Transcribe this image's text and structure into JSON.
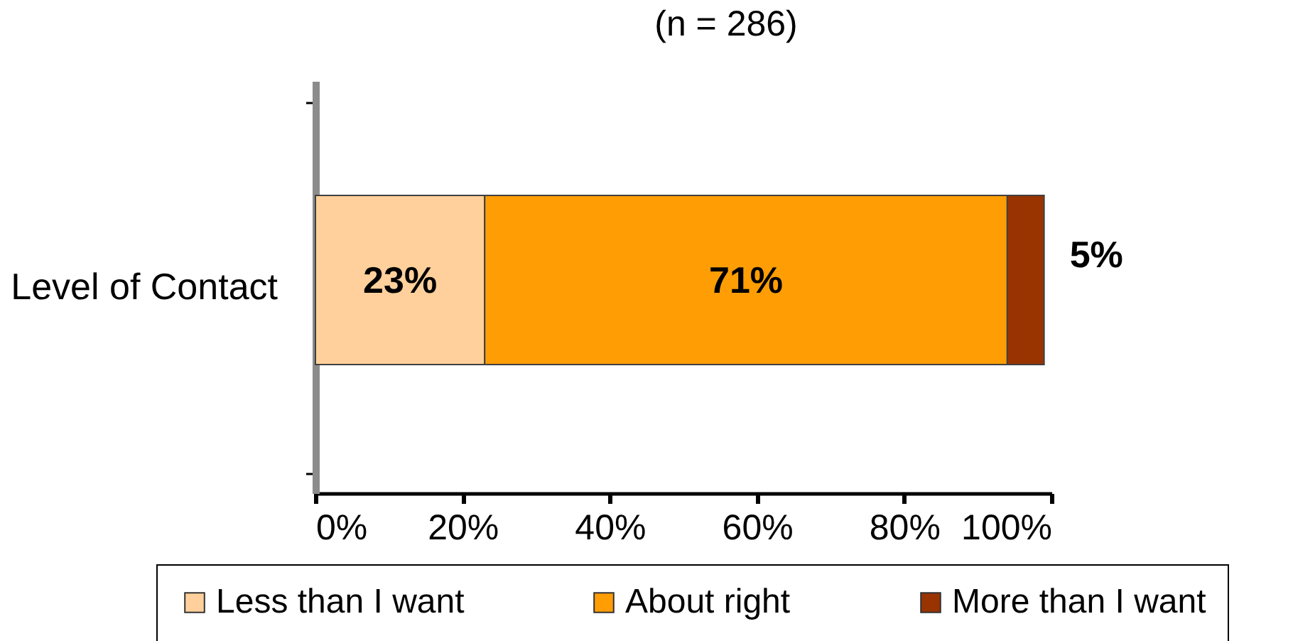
{
  "chart_data": {
    "type": "bar",
    "orientation": "horizontal",
    "stacked": true,
    "title": "(n = 286)",
    "categories": [
      "Level of Contact"
    ],
    "series": [
      {
        "name": "Less than I want",
        "color": "#ffd09b",
        "values": [
          23
        ],
        "value_labels": [
          "23%"
        ]
      },
      {
        "name": "About right",
        "color": "#ff9d05",
        "values": [
          71
        ],
        "value_labels": [
          "71%"
        ]
      },
      {
        "name": "More than I want",
        "color": "#993300",
        "values": [
          5
        ],
        "value_labels": [
          "5%"
        ]
      }
    ],
    "xlim": [
      0,
      100
    ],
    "xticks": [
      {
        "value": 0,
        "label": "0%"
      },
      {
        "value": 20,
        "label": "20%"
      },
      {
        "value": 40,
        "label": "40%"
      },
      {
        "value": 60,
        "label": "60%"
      },
      {
        "value": 80,
        "label": "80%"
      },
      {
        "value": 100,
        "label": "100%"
      }
    ],
    "grid": false,
    "legend": "bottom"
  }
}
